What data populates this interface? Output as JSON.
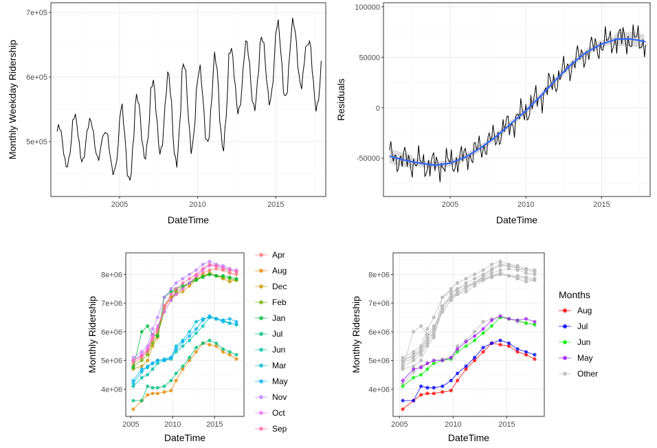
{
  "colors": {
    "grid_major": "#ebebeb",
    "grid_minor": "#f5f5f5",
    "frame": "#333333",
    "line": "#000000",
    "smooth": "#3366ff",
    "ribbon": "#bdbdbd",
    "other": "#bebebe",
    "Apr": "#F8766D",
    "Aug": "#E58700",
    "Dec": "#C99800",
    "Feb": "#6BB100",
    "Jan": "#00BA38",
    "Jul": "#00BF7D",
    "Jun": "#00C0AF",
    "Mar": "#00BCD8",
    "May": "#00B0F6",
    "Nov": "#B983FF",
    "Oct": "#E76BF3",
    "Sep": "#FF67A4",
    "hl_Aug": "#ff0000",
    "hl_Jul": "#0000ff",
    "hl_Jun": "#00ee00",
    "hl_May": "#a020f0"
  },
  "chart_data": [
    {
      "id": "weekday",
      "type": "line",
      "title": "",
      "xlabel": "DateTime",
      "ylabel": "Monthly Weekday Ridership",
      "xlim": [
        2000.6,
        2018.2
      ],
      "ylim": [
        415000,
        715000
      ],
      "xticks": [
        2005,
        2010,
        2015
      ],
      "xtick_labels": [
        "2005",
        "2010",
        "2015"
      ],
      "yticks": [
        500000,
        600000,
        700000
      ],
      "ytick_labels": [
        "5e+05",
        "6e+05",
        "7e+05"
      ],
      "x_start": 2001.0,
      "x_step": 0.0833,
      "annual_max": [
        528000,
        545000,
        537000,
        520000,
        560000,
        575000,
        600000,
        612000,
        630000,
        620000,
        640000,
        650000,
        660000,
        668000,
        690000,
        692000,
        663000
      ],
      "annual_min": [
        458000,
        465000,
        470000,
        448000,
        432000,
        470000,
        476000,
        458000,
        480000,
        490000,
        482000,
        540000,
        545000,
        555000,
        560000,
        580000,
        545000
      ]
    },
    {
      "id": "residuals",
      "type": "line",
      "title": "",
      "xlabel": "DateTime",
      "ylabel": "Residuals",
      "xlim": [
        2000.6,
        2018.2
      ],
      "ylim": [
        -88000,
        104000
      ],
      "xticks": [
        2005,
        2010,
        2015
      ],
      "xtick_labels": [
        "2005",
        "2010",
        "2015"
      ],
      "yticks": [
        -50000,
        0,
        50000,
        100000
      ],
      "ytick_labels": [
        "-50000",
        "0",
        "50000",
        "100000"
      ],
      "x_start": 2001.0,
      "x_step": 0.0833,
      "trend_x": [
        2001,
        2002,
        2003,
        2004,
        2005,
        2006,
        2007,
        2008,
        2009,
        2010,
        2011,
        2012,
        2013,
        2014,
        2015,
        2016,
        2017,
        2018
      ],
      "trend_y": [
        -48000,
        -52000,
        -55000,
        -57000,
        -55000,
        -49000,
        -40000,
        -29000,
        -16000,
        -3000,
        12000,
        28000,
        43000,
        55000,
        63000,
        68000,
        68000,
        65000
      ],
      "noise_amp": 10000,
      "smooth": {
        "method": "loess",
        "color": "blue",
        "se_band": true
      }
    },
    {
      "id": "monthly-all",
      "type": "line",
      "title": "",
      "xlabel": "DateTime",
      "ylabel": "Monthly Ridership",
      "xlim": [
        2004.4,
        2018.5
      ],
      "ylim": [
        3050000,
        8750000
      ],
      "xticks": [
        2005,
        2010,
        2015
      ],
      "xtick_labels": [
        "2005",
        "2010",
        "2015"
      ],
      "yticks": [
        4000000,
        5000000,
        6000000,
        7000000,
        8000000
      ],
      "ytick_labels": [
        "4e+06",
        "5e+06",
        "6e+06",
        "7e+06",
        "8e+06"
      ],
      "x": [
        2005.3,
        2006.3,
        2007.0,
        2007.6,
        2008.2,
        2009.0,
        2009.8,
        2010.4,
        2011.2,
        2012.0,
        2012.8,
        2013.6,
        2014.4,
        2015.2,
        2016.0,
        2016.8,
        2017.6
      ],
      "legend": {
        "title": "",
        "position": "right"
      },
      "series": [
        {
          "name": "Apr",
          "values": [
            4900000,
            5100000,
            5300000,
            5700000,
            6000000,
            6800000,
            7200000,
            7400000,
            7550000,
            7700000,
            7900000,
            8050000,
            8150000,
            8200000,
            8150000,
            8050000,
            8000000
          ]
        },
        {
          "name": "Aug",
          "values": [
            3300000,
            3600000,
            3800000,
            3850000,
            3850000,
            3900000,
            3950000,
            4300000,
            4700000,
            5000000,
            5300000,
            5600000,
            5550000,
            5500000,
            5300000,
            5200000,
            5050000
          ]
        },
        {
          "name": "Dec",
          "values": [
            4700000,
            4800000,
            5000000,
            5500000,
            5800000,
            6900000,
            7200000,
            7300000,
            7400000,
            7600000,
            7800000,
            7950000,
            8050000,
            7950000,
            7850000,
            7750000,
            7800000
          ]
        },
        {
          "name": "Feb",
          "values": [
            4800000,
            5000000,
            5200000,
            5600000,
            5900000,
            6700000,
            7100000,
            7400000,
            7550000,
            7700000,
            7850000,
            7950000,
            8000000,
            7950000,
            7900000,
            7850000,
            7800000
          ]
        },
        {
          "name": "Jan",
          "values": [
            4750000,
            6000000,
            6200000,
            5900000,
            5850000,
            7200000,
            7400000,
            7500000,
            7600000,
            7700000,
            7800000,
            7900000,
            8000000,
            7950000,
            7950000,
            7900000,
            7850000
          ]
        },
        {
          "name": "Jul",
          "values": [
            3600000,
            3600000,
            4100000,
            4050000,
            4050000,
            4100000,
            4300000,
            4550000,
            4800000,
            5100000,
            5450000,
            5600000,
            5700000,
            5600000,
            5400000,
            5300000,
            5200000
          ]
        },
        {
          "name": "Jun",
          "values": [
            4100000,
            4400000,
            4500000,
            4700000,
            4900000,
            5000000,
            5050000,
            5300000,
            5500000,
            5700000,
            5950000,
            6200000,
            6500000,
            6450000,
            6400000,
            6300000,
            6250000
          ]
        },
        {
          "name": "Mar",
          "values": [
            4200000,
            4600000,
            4800000,
            4900000,
            5000000,
            5050000,
            5100000,
            5500000,
            5700000,
            6000000,
            6350000,
            6450000,
            6500000,
            6450000,
            6350000,
            6300000,
            6250000
          ]
        },
        {
          "name": "May",
          "values": [
            4300000,
            4700000,
            4750000,
            4900000,
            5000000,
            5000000,
            5100000,
            5400000,
            5650000,
            5850000,
            6100000,
            6400000,
            6550000,
            6450000,
            6400000,
            6450000,
            6350000
          ]
        },
        {
          "name": "Nov",
          "values": [
            5100000,
            5300000,
            5500000,
            6100000,
            6500000,
            7200000,
            7500000,
            7700000,
            7850000,
            8000000,
            8150000,
            8350000,
            8450000,
            8350000,
            8300000,
            8200000,
            8150000
          ]
        },
        {
          "name": "Oct",
          "values": [
            5000000,
            5200000,
            5400000,
            5900000,
            6200000,
            6700000,
            7100000,
            7300000,
            7500000,
            7700000,
            7950000,
            8150000,
            8300000,
            8300000,
            8250000,
            8150000,
            8100000
          ]
        },
        {
          "name": "Sep",
          "values": [
            5000000,
            5150000,
            5350000,
            5800000,
            6100000,
            6900000,
            7300000,
            7500000,
            7700000,
            7850000,
            8000000,
            8200000,
            8350000,
            8300000,
            8200000,
            8150000,
            8100000
          ]
        }
      ]
    },
    {
      "id": "monthly-highlight",
      "type": "line",
      "title": "",
      "xlabel": "DateTime",
      "ylabel": "Monthly Ridership",
      "xlim": [
        2004.4,
        2018.5
      ],
      "ylim": [
        3050000,
        8750000
      ],
      "xticks": [
        2005,
        2010,
        2015
      ],
      "xtick_labels": [
        "2005",
        "2010",
        "2015"
      ],
      "yticks": [
        4000000,
        5000000,
        6000000,
        7000000,
        8000000
      ],
      "ytick_labels": [
        "4e+06",
        "5e+06",
        "6e+06",
        "7e+06",
        "8e+06"
      ],
      "legend": {
        "title": "Months",
        "position": "right"
      },
      "legend_items": [
        {
          "name": "Aug",
          "color_key": "hl_Aug"
        },
        {
          "name": "Jul",
          "color_key": "hl_Jul"
        },
        {
          "name": "Jun",
          "color_key": "hl_Jun"
        },
        {
          "name": "May",
          "color_key": "hl_May"
        },
        {
          "name": "Other",
          "color_key": "other"
        }
      ],
      "highlight": [
        {
          "name": "Aug",
          "color_key": "hl_Aug",
          "source": "Aug"
        },
        {
          "name": "Jul",
          "color_key": "hl_Jul",
          "source": "Jul"
        },
        {
          "name": "Jun",
          "color_key": "hl_Jun",
          "source": "Jun"
        },
        {
          "name": "May",
          "color_key": "hl_May",
          "source": "May"
        }
      ]
    }
  ]
}
